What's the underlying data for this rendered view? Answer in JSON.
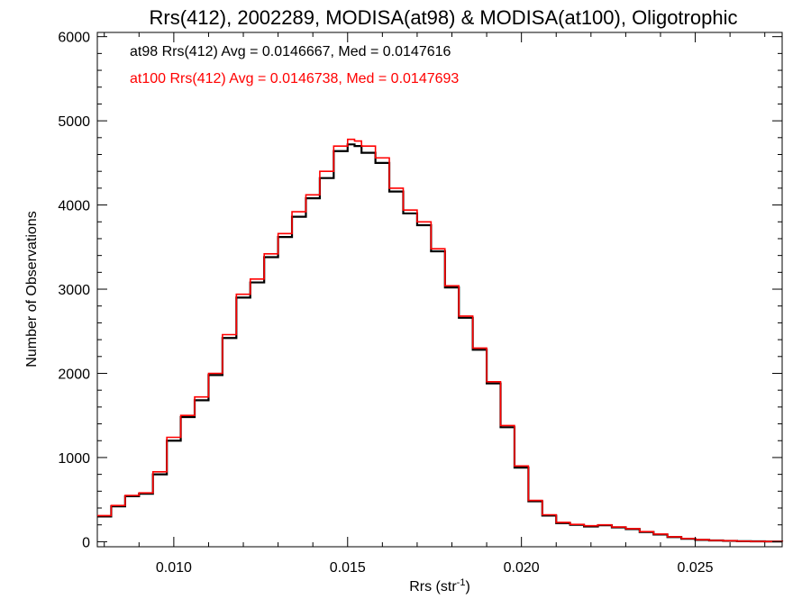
{
  "chart_data": {
    "type": "line",
    "title": "Rrs(412), 2002289, MODISA(at98) & MODISA(at100), Oligotrophic",
    "xlabel_text": "Rrs (str",
    "xlabel_sup": "-1",
    "xlabel_close": ")",
    "ylabel": "Number of Observations",
    "xlim": [
      0.0078,
      0.0275
    ],
    "ylim": [
      -60,
      6050
    ],
    "x_ticks": [
      0.01,
      0.015,
      0.02,
      0.025
    ],
    "x_tick_labels": [
      "0.010",
      "0.015",
      "0.020",
      "0.025"
    ],
    "y_ticks": [
      0,
      1000,
      2000,
      3000,
      4000,
      5000,
      6000
    ],
    "y_tick_labels": [
      "0",
      "1000",
      "2000",
      "3000",
      "4000",
      "5000",
      "6000"
    ],
    "grid": false,
    "annotations": [
      {
        "text": "at98 Rrs(412) Avg = 0.0146667, Med = 0.0147616",
        "color": "#000000"
      },
      {
        "text": "at100 Rrs(412) Avg = 0.0146738, Med = 0.0147693",
        "color": "#ff0000"
      }
    ],
    "series": [
      {
        "color": "#000000",
        "x": [
          0.0078,
          0.0082,
          0.0086,
          0.009,
          0.0094,
          0.0098,
          0.0102,
          0.0106,
          0.011,
          0.0114,
          0.0118,
          0.0122,
          0.0126,
          0.013,
          0.0134,
          0.0138,
          0.0142,
          0.0146,
          0.015,
          0.0152,
          0.0154,
          0.0158,
          0.0162,
          0.0166,
          0.017,
          0.0174,
          0.0178,
          0.0182,
          0.0186,
          0.019,
          0.0194,
          0.0198,
          0.0202,
          0.0206,
          0.021,
          0.0214,
          0.0218,
          0.0222,
          0.0226,
          0.023,
          0.0234,
          0.0238,
          0.0242,
          0.0246,
          0.025,
          0.0254,
          0.0258,
          0.0262,
          0.0266,
          0.027,
          0.0275
        ],
        "y": [
          300,
          420,
          540,
          570,
          800,
          1200,
          1480,
          1680,
          1980,
          2420,
          2900,
          3080,
          3380,
          3620,
          3860,
          4080,
          4320,
          4640,
          4720,
          4700,
          4620,
          4500,
          4160,
          3900,
          3760,
          3450,
          3020,
          2660,
          2280,
          1880,
          1360,
          880,
          480,
          310,
          220,
          200,
          180,
          195,
          170,
          150,
          115,
          85,
          55,
          35,
          22,
          15,
          10,
          6,
          4,
          2,
          1
        ]
      },
      {
        "color": "#ff0000",
        "x": [
          0.0078,
          0.0082,
          0.0086,
          0.009,
          0.0094,
          0.0098,
          0.0102,
          0.0106,
          0.011,
          0.0114,
          0.0118,
          0.0122,
          0.0126,
          0.013,
          0.0134,
          0.0138,
          0.0142,
          0.0146,
          0.015,
          0.0152,
          0.0154,
          0.0158,
          0.0162,
          0.0166,
          0.017,
          0.0174,
          0.0178,
          0.0182,
          0.0186,
          0.019,
          0.0194,
          0.0198,
          0.0202,
          0.0206,
          0.021,
          0.0214,
          0.0218,
          0.0222,
          0.0226,
          0.023,
          0.0234,
          0.0238,
          0.0242,
          0.0246,
          0.025,
          0.0254,
          0.0258,
          0.0262,
          0.0266,
          0.027,
          0.0275
        ],
        "y": [
          310,
          430,
          550,
          580,
          830,
          1240,
          1500,
          1720,
          2000,
          2460,
          2940,
          3120,
          3420,
          3660,
          3920,
          4120,
          4400,
          4700,
          4780,
          4760,
          4700,
          4560,
          4200,
          3940,
          3800,
          3480,
          3040,
          2680,
          2300,
          1900,
          1380,
          900,
          490,
          320,
          230,
          205,
          190,
          200,
          175,
          155,
          120,
          90,
          58,
          38,
          24,
          16,
          11,
          7,
          4,
          2,
          1
        ]
      }
    ]
  }
}
